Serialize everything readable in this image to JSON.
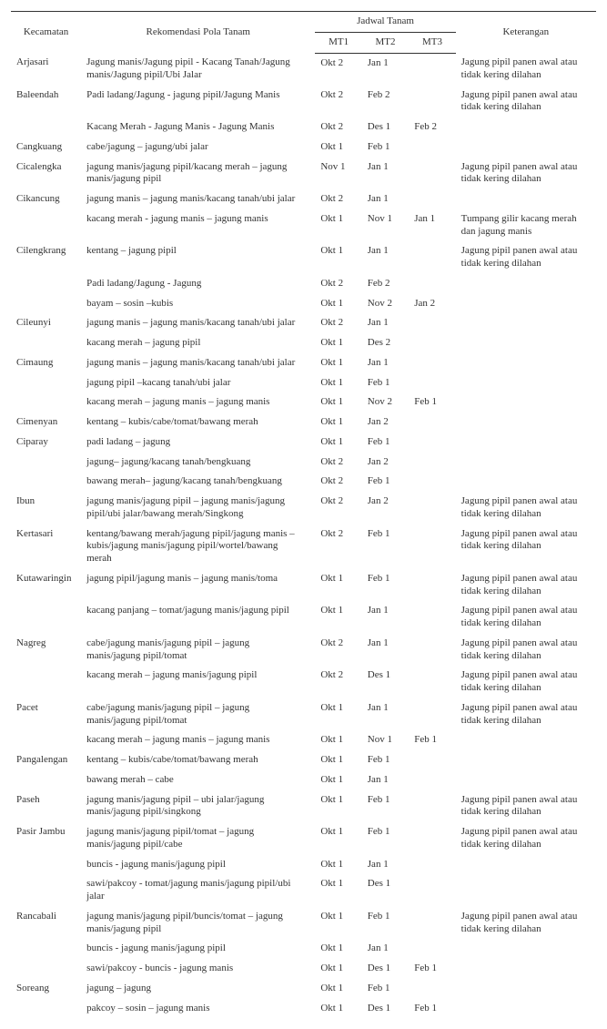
{
  "headers": {
    "kecamatan": "Kecamatan",
    "rekomendasi": "Rekomendasi Pola Tanam",
    "jadwal": "Jadwal Tanam",
    "mt1": "MT1",
    "mt2": "MT2",
    "mt3": "MT3",
    "keterangan": "Keterangan"
  },
  "rows": [
    {
      "kec": "Arjasari",
      "rek": "Jagung manis/Jagung pipil - Kacang Tanah/Jagung manis/Jagung pipil/Ubi Jalar",
      "mt1": "Okt 2",
      "mt2": "Jan 1",
      "mt3": "",
      "ket": "Jagung pipil panen awal atau tidak kering dilahan"
    },
    {
      "kec": "Baleendah",
      "rek": "Padi ladang/Jagung - jagung pipil/Jagung Manis",
      "mt1": "Okt 2",
      "mt2": "Feb 2",
      "mt3": "",
      "ket": "Jagung pipil panen awal atau tidak kering dilahan"
    },
    {
      "kec": "",
      "rek": "Kacang Merah - Jagung Manis - Jagung Manis",
      "mt1": "Okt 2",
      "mt2": "Des 1",
      "mt3": "Feb 2",
      "ket": ""
    },
    {
      "kec": "Cangkuang",
      "rek": "cabe/jagung – jagung/ubi jalar",
      "mt1": "Okt 1",
      "mt2": "Feb 1",
      "mt3": "",
      "ket": ""
    },
    {
      "kec": "Cicalengka",
      "rek": "jagung manis/jagung pipil/kacang merah – jagung manis/jagung pipil",
      "mt1": "Nov 1",
      "mt2": "Jan 1",
      "mt3": "",
      "ket": "Jagung pipil panen awal atau tidak kering dilahan"
    },
    {
      "kec": "Cikancung",
      "rek": "jagung manis – jagung manis/kacang tanah/ubi jalar",
      "mt1": "Okt 2",
      "mt2": "Jan 1",
      "mt3": "",
      "ket": ""
    },
    {
      "kec": "",
      "rek": "kacang merah - jagung manis – jagung manis",
      "mt1": "Okt 1",
      "mt2": "Nov 1",
      "mt3": "Jan 1",
      "ket": "Tumpang gilir kacang merah dan jagung manis"
    },
    {
      "kec": "Cilengkrang",
      "rek": "kentang – jagung pipil",
      "mt1": "Okt 1",
      "mt2": "Jan 1",
      "mt3": "",
      "ket": "Jagung pipil panen awal atau tidak kering dilahan"
    },
    {
      "kec": "",
      "rek": "Padi ladang/Jagung - Jagung",
      "mt1": "Okt 2",
      "mt2": "Feb 2",
      "mt3": "",
      "ket": ""
    },
    {
      "kec": "",
      "rek": "bayam – sosin –kubis",
      "mt1": "Okt 1",
      "mt2": "Nov 2",
      "mt3": "Jan 2",
      "ket": ""
    },
    {
      "kec": "Cileunyi",
      "rek": "jagung manis – jagung manis/kacang tanah/ubi jalar",
      "mt1": "Okt 2",
      "mt2": "Jan 1",
      "mt3": "",
      "ket": ""
    },
    {
      "kec": "",
      "rek": "kacang merah – jagung pipil",
      "mt1": "Okt 1",
      "mt2": "Des 2",
      "mt3": "",
      "ket": ""
    },
    {
      "kec": "Cimaung",
      "rek": "jagung manis – jagung manis/kacang tanah/ubi jalar",
      "mt1": "Okt 1",
      "mt2": "Jan 1",
      "mt3": "",
      "ket": ""
    },
    {
      "kec": "",
      "rek": "jagung pipil –kacang tanah/ubi jalar",
      "mt1": "Okt 1",
      "mt2": "Feb 1",
      "mt3": "",
      "ket": ""
    },
    {
      "kec": "",
      "rek": "kacang merah – jagung manis – jagung manis",
      "mt1": "Okt 1",
      "mt2": "Nov 2",
      "mt3": "Feb 1",
      "ket": ""
    },
    {
      "kec": "Cimenyan",
      "rek": "kentang – kubis/cabe/tomat/bawang merah",
      "mt1": "Okt 1",
      "mt2": "Jan 2",
      "mt3": "",
      "ket": ""
    },
    {
      "kec": "Ciparay",
      "rek": "padi ladang – jagung",
      "mt1": "Okt 1",
      "mt2": "Feb 1",
      "mt3": "",
      "ket": ""
    },
    {
      "kec": "",
      "rek": "jagung– jagung/kacang tanah/bengkuang",
      "mt1": "Okt 2",
      "mt2": "Jan 2",
      "mt3": "",
      "ket": ""
    },
    {
      "kec": "",
      "rek": "bawang  merah– jagung/kacang tanah/bengkuang",
      "mt1": "Okt 2",
      "mt2": "Feb 1",
      "mt3": "",
      "ket": ""
    },
    {
      "kec": "Ibun",
      "rek": "jagung manis/jagung pipil – jagung manis/jagung pipil/ubi jalar/bawang merah/Singkong",
      "mt1": "Okt 2",
      "mt2": "Jan 2",
      "mt3": "",
      "ket": "Jagung pipil panen awal atau tidak kering dilahan"
    },
    {
      "kec": "Kertasari",
      "rek": "kentang/bawang merah/jagung pipil/jagung manis – kubis/jagung manis/jagung pipil/wortel/bawang merah",
      "mt1": "Okt 2",
      "mt2": "Feb 1",
      "mt3": "",
      "ket": "Jagung pipil panen awal atau tidak kering dilahan"
    },
    {
      "kec": "Kutawaringin",
      "rek": "jagung pipil/jagung manis – jagung manis/toma",
      "mt1": "Okt 1",
      "mt2": "Feb 1",
      "mt3": "",
      "ket": "Jagung pipil panen awal atau tidak kering dilahan"
    },
    {
      "kec": "",
      "rek": "kacang panjang – tomat/jagung manis/jagung pipil",
      "mt1": "Okt 1",
      "mt2": "Jan 1",
      "mt3": "",
      "ket": "Jagung pipil panen awal atau tidak kering dilahan"
    },
    {
      "kec": "Nagreg",
      "rek": "cabe/jagung manis/jagung pipil – jagung manis/jagung pipil/tomat",
      "mt1": "Okt 2",
      "mt2": "Jan 1",
      "mt3": "",
      "ket": "Jagung pipil panen awal atau tidak kering dilahan"
    },
    {
      "kec": "",
      "rek": "kacang merah – jagung manis/jagung pipil",
      "mt1": "Okt 2",
      "mt2": "Des 1",
      "mt3": "",
      "ket": "Jagung pipil panen awal atau tidak kering dilahan"
    },
    {
      "kec": "Pacet",
      "rek": "cabe/jagung manis/jagung pipil – jagung manis/jagung pipil/tomat",
      "mt1": "Okt 1",
      "mt2": "Jan 1",
      "mt3": "",
      "ket": "Jagung pipil panen awal atau tidak kering dilahan"
    },
    {
      "kec": "",
      "rek": "kacang merah – jagung manis – jagung manis",
      "mt1": "Okt 1",
      "mt2": "Nov 1",
      "mt3": "Feb 1",
      "ket": ""
    },
    {
      "kec": "Pangalengan",
      "rek": "kentang – kubis/cabe/tomat/bawang merah",
      "mt1": "Okt 1",
      "mt2": "Feb 1",
      "mt3": "",
      "ket": ""
    },
    {
      "kec": "",
      "rek": "bawang merah – cabe",
      "mt1": "Okt 1",
      "mt2": "Jan 1",
      "mt3": "",
      "ket": ""
    },
    {
      "kec": "Paseh",
      "rek": "jagung manis/jagung pipil – ubi jalar/jagung manis/jagung pipil/singkong",
      "mt1": "Okt 1",
      "mt2": "Feb 1",
      "mt3": "",
      "ket": "Jagung pipil panen awal atau tidak kering dilahan"
    },
    {
      "kec": "Pasir Jambu",
      "rek": "jagung manis/jagung pipil/tomat – jagung manis/jagung pipil/cabe",
      "mt1": "Okt 1",
      "mt2": "Feb 1",
      "mt3": "",
      "ket": "Jagung pipil panen awal atau tidak kering dilahan"
    },
    {
      "kec": "",
      "rek": "buncis - jagung manis/jagung pipil",
      "mt1": "Okt 1",
      "mt2": "Jan 1",
      "mt3": "",
      "ket": ""
    },
    {
      "kec": "",
      "rek": "sawi/pakcoy - tomat/jagung manis/jagung pipil/ubi jalar",
      "mt1": "Okt 1",
      "mt2": "Des 1",
      "mt3": "",
      "ket": ""
    },
    {
      "kec": "Rancabali",
      "rek": "jagung manis/jagung pipil/buncis/tomat – jagung manis/jagung pipil",
      "mt1": "Okt 1",
      "mt2": "Feb 1",
      "mt3": "",
      "ket": "Jagung pipil panen awal atau tidak kering dilahan"
    },
    {
      "kec": "",
      "rek": "buncis - jagung manis/jagung pipil",
      "mt1": "Okt 1",
      "mt2": "Jan 1",
      "mt3": "",
      "ket": ""
    },
    {
      "kec": "",
      "rek": "sawi/pakcoy - buncis - jagung manis",
      "mt1": "Okt 1",
      "mt2": "Des 1",
      "mt3": "Feb 1",
      "ket": ""
    },
    {
      "kec": "Soreang",
      "rek": "jagung – jagung",
      "mt1": "Okt 1",
      "mt2": "Feb 1",
      "mt3": "",
      "ket": ""
    },
    {
      "kec": "",
      "rek": "pakcoy – sosin – jagung manis",
      "mt1": "Okt 1",
      "mt2": "Des 1",
      "mt3": "Feb 1",
      "ket": ""
    }
  ]
}
